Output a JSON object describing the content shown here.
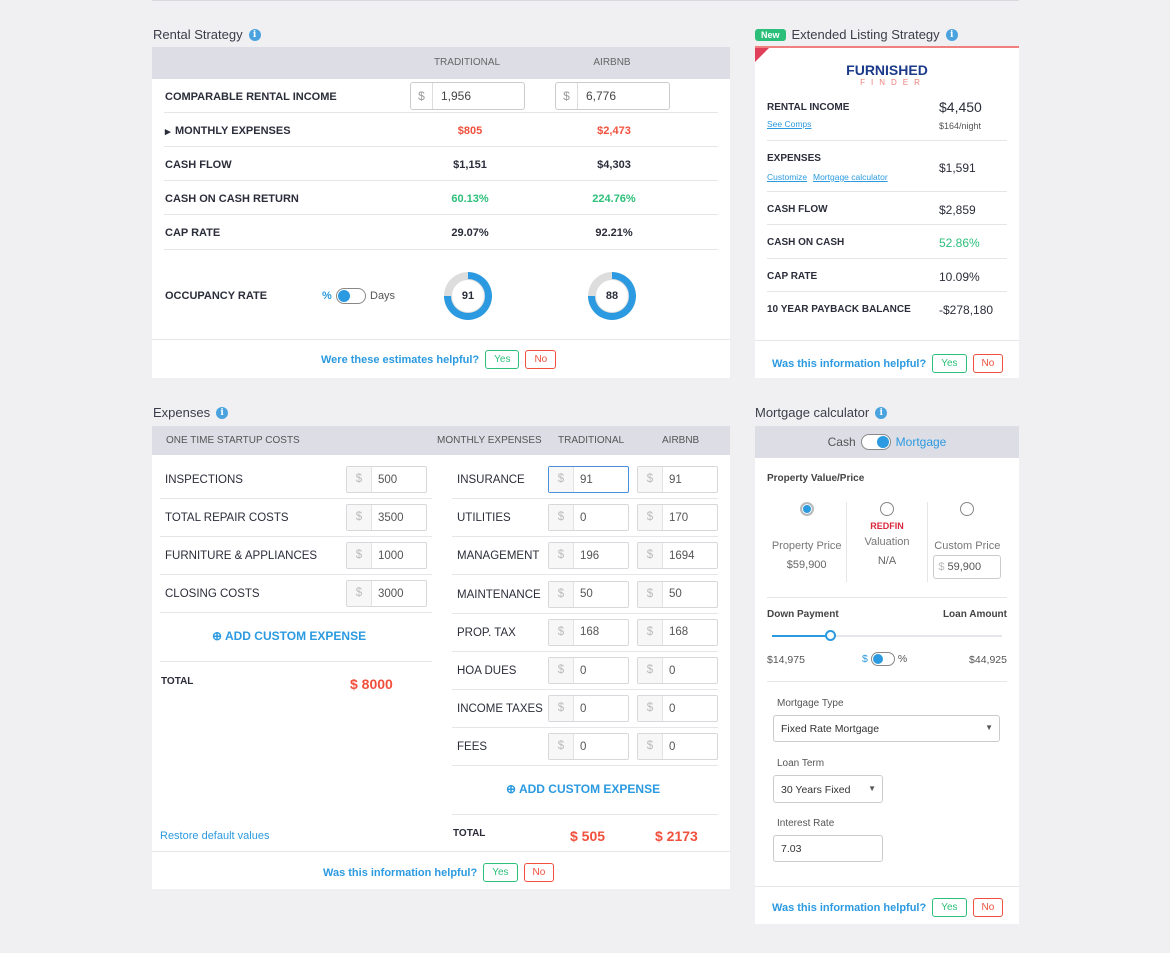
{
  "rental": {
    "title": "Rental Strategy",
    "col_traditional": "TRADITIONAL",
    "col_airbnb": "AIRBNB",
    "rows": [
      {
        "label": "COMPARABLE RENTAL INCOME",
        "traditional": "1,956",
        "airbnb": "6,776"
      },
      {
        "label": "MONTHLY EXPENSES",
        "traditional": "$805",
        "airbnb": "$2,473"
      },
      {
        "label": "CASH FLOW",
        "traditional": "$1,151",
        "airbnb": "$4,303"
      },
      {
        "label": "CASH ON CASH RETURN",
        "traditional": "60.13%",
        "airbnb": "224.76%"
      },
      {
        "label": "CAP RATE",
        "traditional": "29.07%",
        "airbnb": "92.21%"
      }
    ],
    "occupancy": {
      "label": "OCCUPANCY RATE",
      "toggle_left": "%",
      "toggle_right": "Days",
      "traditional": 91,
      "airbnb": 88
    },
    "currency": "$",
    "feedback": "Were these estimates helpful?",
    "yes": "Yes",
    "no": "No"
  },
  "extended": {
    "badge": "New",
    "title": "Extended Listing Strategy",
    "logo_top": "FURNISHED",
    "logo_bottom": "FINDER",
    "rental_income": {
      "label": "RENTAL INCOME",
      "link": "See Comps",
      "value": "$4,450",
      "sub": "$164/night"
    },
    "expenses": {
      "label": "EXPENSES",
      "link1": "Customize",
      "link2": "Mortgage calculator",
      "value": "$1,591"
    },
    "rows": [
      {
        "label": "CASH FLOW",
        "value": "$2,859"
      },
      {
        "label": "CASH ON CASH",
        "value": "52.86%"
      },
      {
        "label": "CAP RATE",
        "value": "10.09%"
      },
      {
        "label": "10 YEAR PAYBACK BALANCE",
        "value": "-$278,180"
      }
    ],
    "feedback": "Was this information helpful?",
    "yes": "Yes",
    "no": "No"
  },
  "expenses": {
    "title": "Expenses",
    "startup_header": "ONE TIME STARTUP COSTS",
    "monthly_header": "MONTHLY EXPENSES",
    "col_traditional": "TRADITIONAL",
    "col_airbnb": "AIRBNB",
    "currency": "$",
    "startup": [
      {
        "label": "INSPECTIONS",
        "value": "500"
      },
      {
        "label": "TOTAL REPAIR COSTS",
        "value": "3500"
      },
      {
        "label": "FURNITURE & APPLIANCES",
        "value": "1000"
      },
      {
        "label": "CLOSING COSTS",
        "value": "3000"
      }
    ],
    "add_custom": "ADD CUSTOM EXPENSE",
    "total_label": "TOTAL",
    "startup_total": "$ 8000",
    "monthly": [
      {
        "label": "INSURANCE",
        "traditional": "91",
        "airbnb": "91"
      },
      {
        "label": "UTILITIES",
        "traditional": "0",
        "airbnb": "170"
      },
      {
        "label": "MANAGEMENT",
        "traditional": "196",
        "airbnb": "1694"
      },
      {
        "label": "MAINTENANCE",
        "traditional": "50",
        "airbnb": "50"
      },
      {
        "label": "PROP. TAX",
        "traditional": "168",
        "airbnb": "168"
      },
      {
        "label": "HOA DUES",
        "traditional": "0",
        "airbnb": "0"
      },
      {
        "label": "INCOME TAXES",
        "traditional": "0",
        "airbnb": "0"
      },
      {
        "label": "FEES",
        "traditional": "0",
        "airbnb": "0"
      }
    ],
    "monthly_total_traditional": "$ 505",
    "monthly_total_airbnb": "$ 2173",
    "restore": "Restore default values",
    "feedback": "Was this information helpful?",
    "yes": "Yes",
    "no": "No"
  },
  "mortgage": {
    "title": "Mortgage calculator",
    "toggle_left": "Cash",
    "toggle_right": "Mortgage",
    "property_label": "Property Value/Price",
    "options": [
      {
        "label": "Property Price",
        "value": "$59,900",
        "selected": true
      },
      {
        "label": "Valuation",
        "value": "N/A",
        "brand": "REDFIN"
      },
      {
        "label": "Custom Price",
        "value": "59,900"
      }
    ],
    "currency": "$",
    "down_payment_label": "Down Payment",
    "loan_amount_label": "Loan Amount",
    "down_payment_fraction": 0.25,
    "down_payment": "$14,975",
    "loan_amount": "$44,925",
    "dp_toggle_left": "$",
    "dp_toggle_right": "%",
    "mortgage_type_label": "Mortgage Type",
    "mortgage_type": "Fixed Rate Mortgage",
    "loan_term_label": "Loan Term",
    "loan_term": "30 Years Fixed",
    "interest_rate_label": "Interest Rate",
    "interest_rate": "7.03",
    "feedback": "Was this information helpful?",
    "yes": "Yes",
    "no": "No"
  }
}
